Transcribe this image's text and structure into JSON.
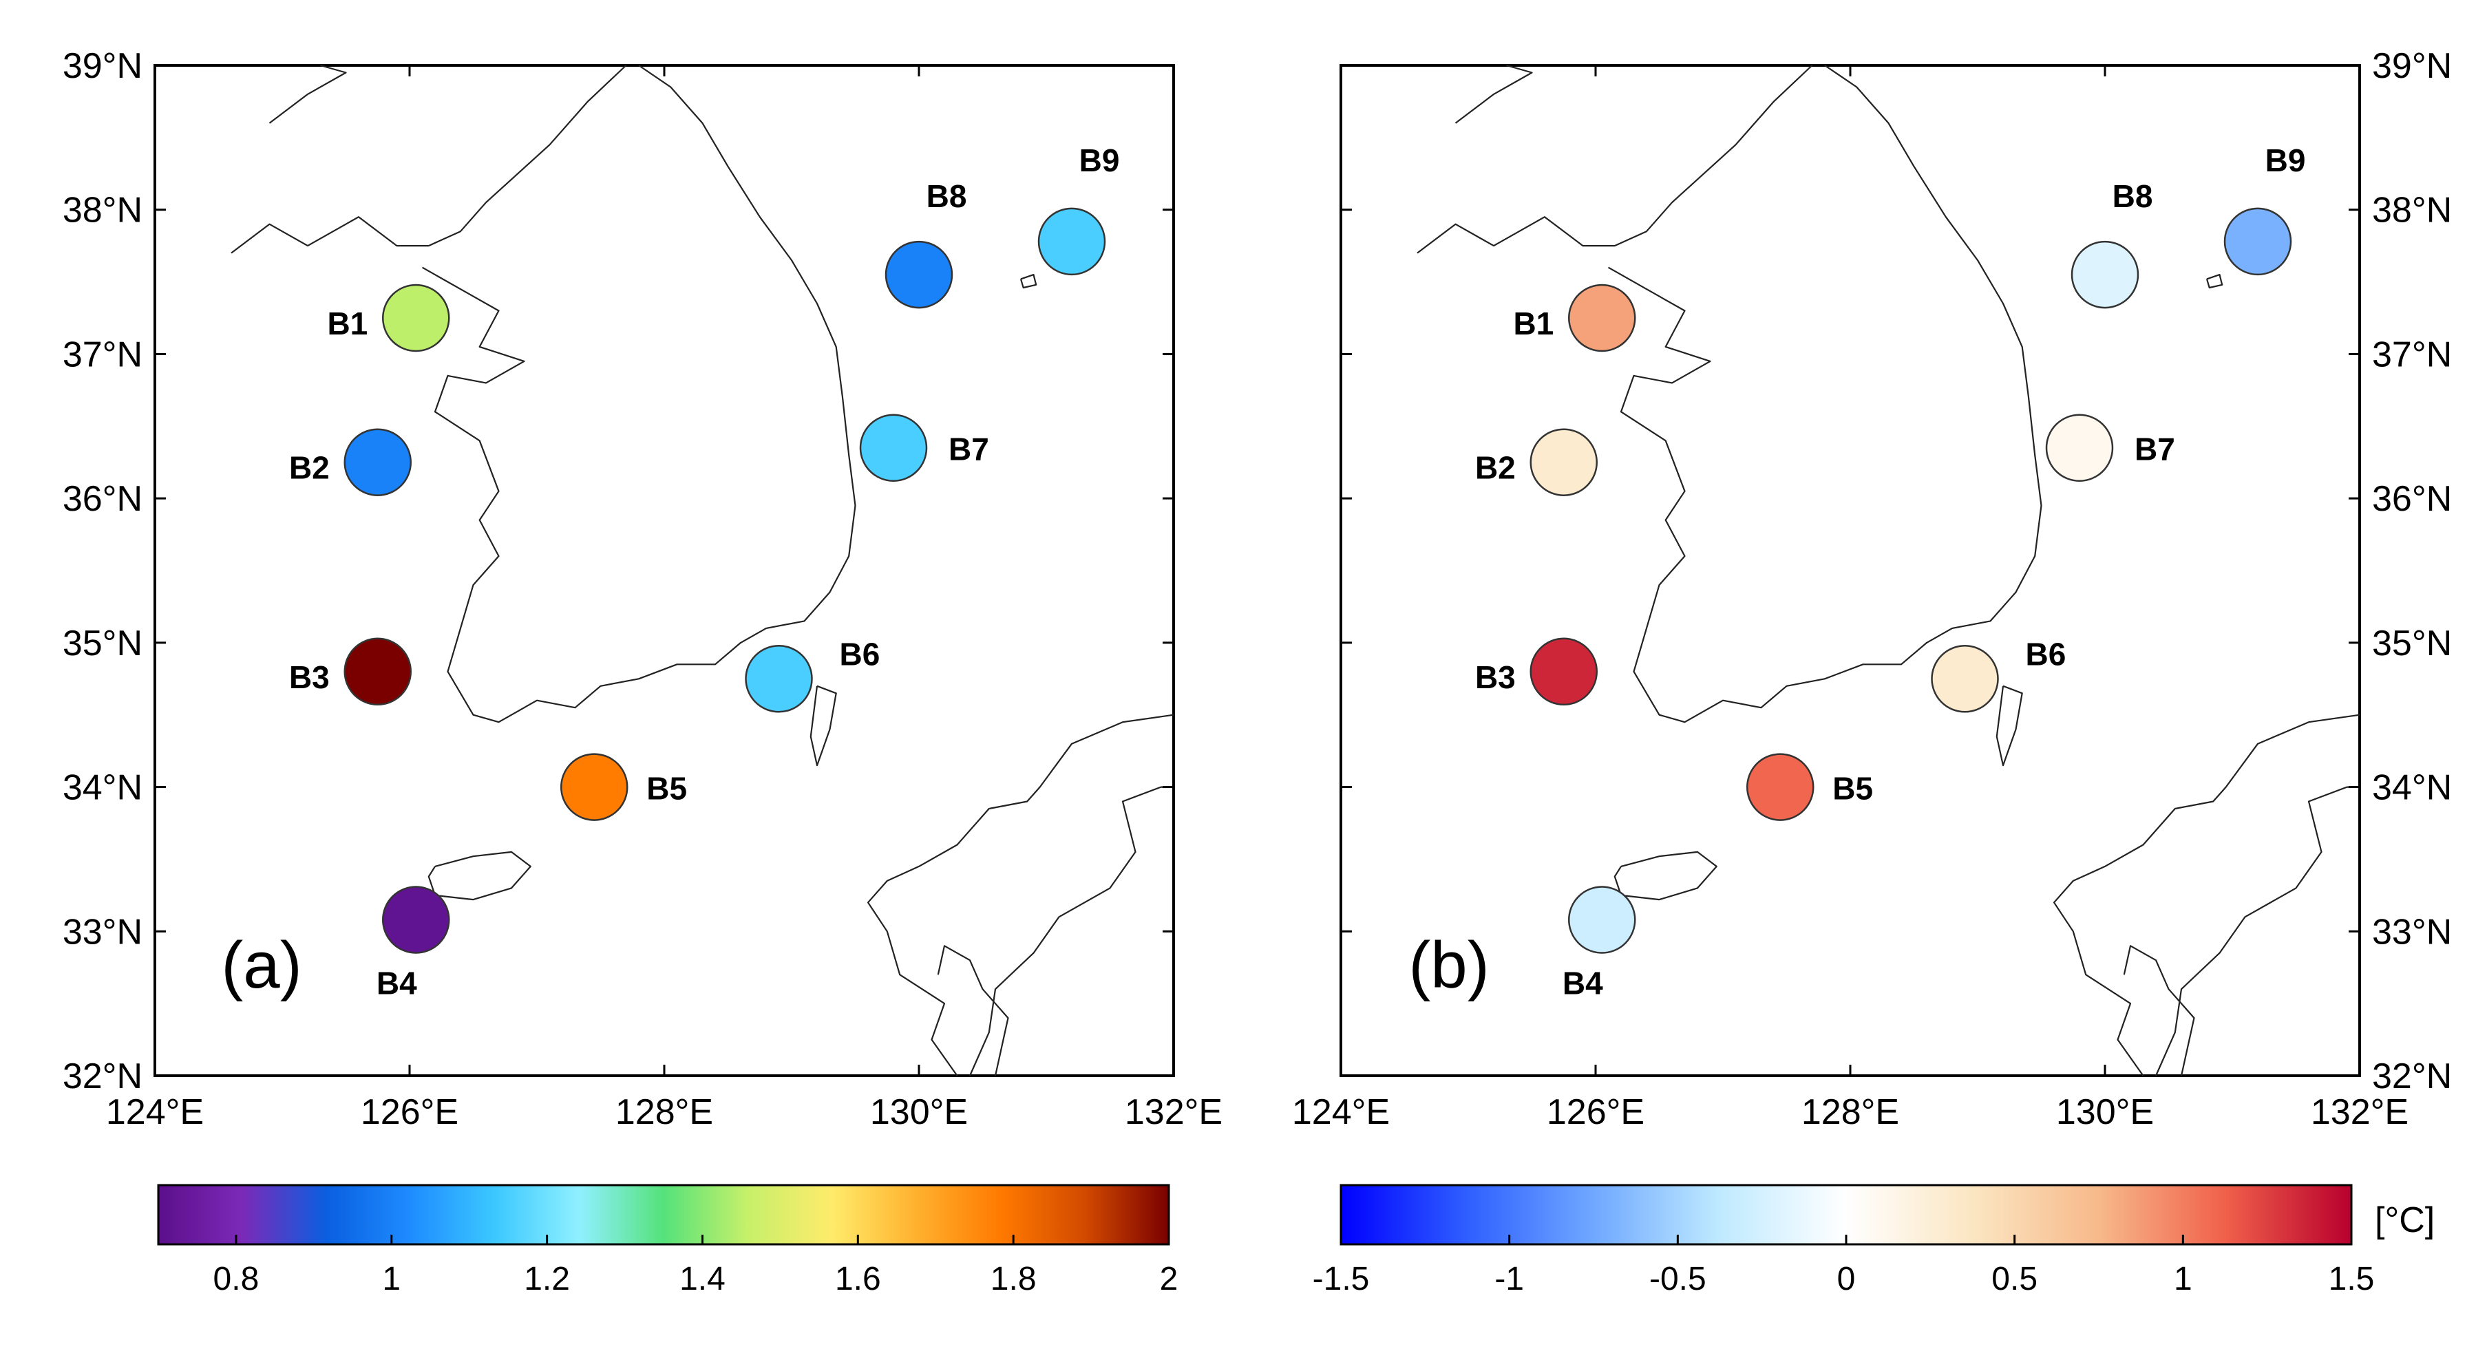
{
  "figure": {
    "panels": [
      {
        "panel_label": "(a)",
        "stations": [
          {
            "id": "B1",
            "lon": 126.05,
            "lat": 37.25,
            "value": 1.45
          },
          {
            "id": "B2",
            "lon": 125.75,
            "lat": 36.25,
            "value": 1.0
          },
          {
            "id": "B3",
            "lon": 125.75,
            "lat": 34.8,
            "value": 2.0
          },
          {
            "id": "B4",
            "lon": 126.05,
            "lat": 33.08,
            "value": 0.72
          },
          {
            "id": "B5",
            "lon": 127.45,
            "lat": 34.0,
            "value": 1.78
          },
          {
            "id": "B6",
            "lon": 128.9,
            "lat": 34.75,
            "value": 1.15
          },
          {
            "id": "B7",
            "lon": 129.8,
            "lat": 36.35,
            "value": 1.15
          },
          {
            "id": "B8",
            "lon": 130.0,
            "lat": 37.55,
            "value": 1.0
          },
          {
            "id": "B9",
            "lon": 131.2,
            "lat": 37.78,
            "value": 1.15
          }
        ],
        "colorbar": {
          "min": 0.7,
          "max": 2.0,
          "ticks": [
            "0.8",
            "1",
            "1.2",
            "1.4",
            "1.6",
            "1.8",
            "2"
          ],
          "tick_values": [
            0.8,
            1.0,
            1.2,
            1.4,
            1.6,
            1.8,
            2.0
          ],
          "unit": ""
        }
      },
      {
        "panel_label": "(b)",
        "stations": [
          {
            "id": "B1",
            "lon": 126.05,
            "lat": 37.25,
            "value": 0.85
          },
          {
            "id": "B2",
            "lon": 125.75,
            "lat": 36.25,
            "value": 0.3
          },
          {
            "id": "B3",
            "lon": 125.75,
            "lat": 34.8,
            "value": 1.35
          },
          {
            "id": "B4",
            "lon": 126.05,
            "lat": 33.08,
            "value": -0.3
          },
          {
            "id": "B5",
            "lon": 127.45,
            "lat": 34.0,
            "value": 1.1
          },
          {
            "id": "B6",
            "lon": 128.9,
            "lat": 34.75,
            "value": 0.3
          },
          {
            "id": "B7",
            "lon": 129.8,
            "lat": 36.35,
            "value": 0.1
          },
          {
            "id": "B8",
            "lon": 130.0,
            "lat": 37.55,
            "value": -0.2
          },
          {
            "id": "B9",
            "lon": 131.2,
            "lat": 37.78,
            "value": -0.7
          }
        ],
        "colorbar": {
          "min": -1.5,
          "max": 1.5,
          "ticks": [
            "-1.5",
            "-1",
            "-0.5",
            "0",
            "0.5",
            "1",
            "1.5"
          ],
          "tick_values": [
            -1.5,
            -1.0,
            -0.5,
            0.0,
            0.5,
            1.0,
            1.5
          ],
          "unit": "[°C]"
        }
      }
    ],
    "lat_ticks": [
      "39°N",
      "38°N",
      "37°N",
      "36°N",
      "35°N",
      "34°N",
      "33°N",
      "32°N"
    ],
    "lat_values": [
      39,
      38,
      37,
      36,
      35,
      34,
      33,
      32
    ],
    "lon_ticks": [
      "124°E",
      "126°E",
      "128°E",
      "130°E",
      "132°E"
    ],
    "lon_values": [
      124,
      126,
      128,
      130,
      132
    ],
    "colors": {
      "jet_stops": [
        "#5b0f8a",
        "#7b2ab8",
        "#0a5fe0",
        "#1e8cff",
        "#3cc8ff",
        "#8ff0ff",
        "#55e27a",
        "#c7f06a",
        "#ffeb6b",
        "#ffb12e",
        "#ff7a00",
        "#d24a00",
        "#7a0000"
      ],
      "div_stops": [
        "#0000ff",
        "#2f5fff",
        "#6fa8ff",
        "#bfeaff",
        "#ffffff",
        "#fbe6c2",
        "#f7b98a",
        "#f0604a",
        "#b8002e"
      ]
    }
  }
}
